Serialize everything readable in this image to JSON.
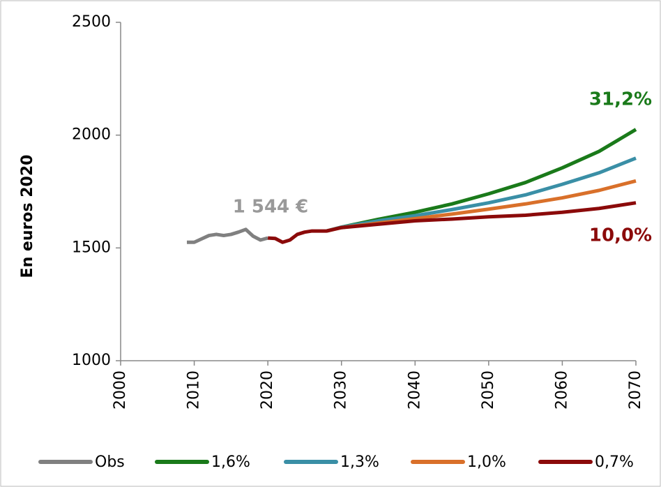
{
  "chart_data": {
    "type": "line",
    "y_label": "En euros 2020",
    "xlim": [
      2000,
      2070
    ],
    "xticks": [
      2000,
      2010,
      2020,
      2030,
      2040,
      2050,
      2060,
      2070
    ],
    "ylim": [
      1000,
      2500
    ],
    "yticks": [
      1000,
      1500,
      2000,
      2500
    ],
    "series": [
      {
        "name": "Obs",
        "color": "#808080",
        "x": [
          2009,
          2010,
          2011,
          2012,
          2013,
          2014,
          2015,
          2016,
          2017,
          2018,
          2019,
          2020
        ],
        "values": [
          1525,
          1525,
          1540,
          1555,
          1560,
          1555,
          1560,
          1570,
          1582,
          1552,
          1535,
          1544
        ]
      },
      {
        "name": "1,6%",
        "color": "#1a7a1a",
        "x": [
          2028,
          2030,
          2035,
          2040,
          2045,
          2050,
          2055,
          2060,
          2065,
          2070
        ],
        "values": [
          1575,
          1592,
          1627,
          1658,
          1695,
          1740,
          1790,
          1855,
          1928,
          2025
        ]
      },
      {
        "name": "1,3%",
        "color": "#3a8fa6",
        "x": [
          2028,
          2030,
          2035,
          2040,
          2045,
          2050,
          2055,
          2060,
          2065,
          2070
        ],
        "values": [
          1575,
          1592,
          1620,
          1643,
          1670,
          1700,
          1735,
          1782,
          1833,
          1898
        ]
      },
      {
        "name": "1,0%",
        "color": "#d9702a",
        "x": [
          2028,
          2030,
          2035,
          2040,
          2045,
          2050,
          2055,
          2060,
          2065,
          2070
        ],
        "values": [
          1575,
          1590,
          1610,
          1630,
          1650,
          1672,
          1695,
          1722,
          1755,
          1797
        ]
      },
      {
        "name": "0,7%",
        "color": "#8b0a0a",
        "x": [
          2020,
          2021,
          2022,
          2023,
          2024,
          2025,
          2026,
          2028,
          2030,
          2035,
          2040,
          2045,
          2050,
          2055,
          2060,
          2065,
          2070
        ],
        "values": [
          1544,
          1542,
          1525,
          1535,
          1560,
          1570,
          1575,
          1575,
          1590,
          1605,
          1620,
          1628,
          1638,
          1645,
          1658,
          1675,
          1700
        ]
      }
    ],
    "annotations": [
      {
        "text": "1 544 €",
        "color": "#999999"
      },
      {
        "text": "31,2%",
        "color": "#1a7a1a"
      },
      {
        "text": "10,0%",
        "color": "#8b0a0a"
      }
    ]
  }
}
